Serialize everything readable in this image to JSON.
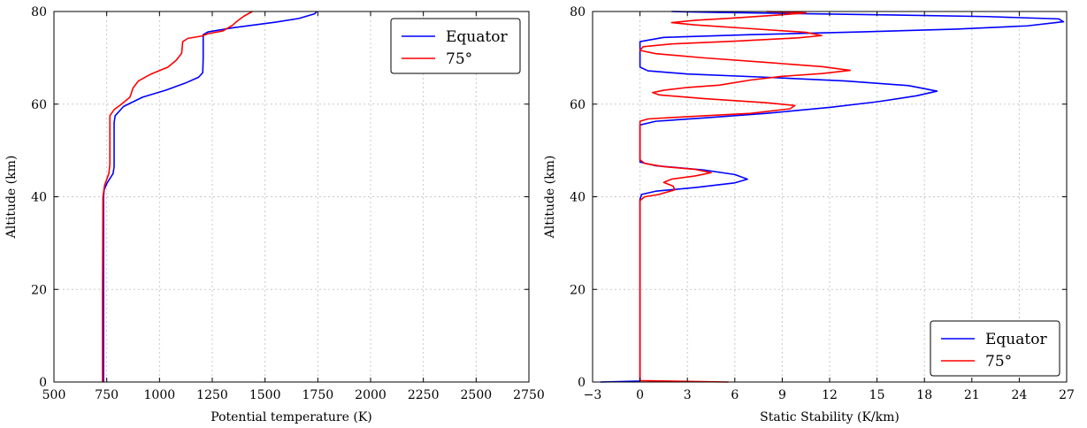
{
  "chart_data": [
    {
      "type": "line",
      "xlabel": "Potential temperature (K)",
      "ylabel": "Altitude (km)",
      "xlim": [
        500,
        2750
      ],
      "ylim": [
        0,
        80
      ],
      "xticks": [
        500,
        750,
        1000,
        1250,
        1500,
        1750,
        2000,
        2250,
        2500,
        2750
      ],
      "yticks": [
        0,
        20,
        40,
        60,
        80
      ],
      "grid": true,
      "legend_position": "top-right",
      "series": [
        {
          "name": "Equator",
          "color": "#0000ff",
          "points": [
            [
              735,
              0
            ],
            [
              735,
              20
            ],
            [
              735,
              40
            ],
            [
              738,
              41.5
            ],
            [
              752,
              43
            ],
            [
              780,
              45
            ],
            [
              785,
              46.5
            ],
            [
              785,
              56
            ],
            [
              790,
              57.5
            ],
            [
              830,
              59.5
            ],
            [
              920,
              61.5
            ],
            [
              1030,
              63
            ],
            [
              1120,
              64.5
            ],
            [
              1185,
              65.8
            ],
            [
              1205,
              66.8
            ],
            [
              1207,
              70
            ],
            [
              1207,
              75
            ],
            [
              1230,
              75.6
            ],
            [
              1350,
              76.5
            ],
            [
              1550,
              77.7
            ],
            [
              1660,
              78.5
            ],
            [
              1735,
              79.5
            ],
            [
              1745,
              80
            ]
          ]
        },
        {
          "name": "75°",
          "color": "#ff0000",
          "points": [
            [
              730,
              0
            ],
            [
              730,
              20
            ],
            [
              732,
              40
            ],
            [
              740,
              42.5
            ],
            [
              760,
              45
            ],
            [
              765,
              47
            ],
            [
              765,
              57.5
            ],
            [
              785,
              58.8
            ],
            [
              820,
              60
            ],
            [
              860,
              61.5
            ],
            [
              875,
              63.5
            ],
            [
              900,
              65
            ],
            [
              960,
              66.5
            ],
            [
              1040,
              68
            ],
            [
              1080,
              69.5
            ],
            [
              1105,
              71
            ],
            [
              1110,
              73.5
            ],
            [
              1135,
              74.2
            ],
            [
              1200,
              74.7
            ],
            [
              1230,
              75.2
            ],
            [
              1300,
              75.8
            ],
            [
              1345,
              77
            ],
            [
              1370,
              78
            ],
            [
              1400,
              79
            ],
            [
              1440,
              80
            ]
          ]
        }
      ]
    },
    {
      "type": "line",
      "xlabel": "Static Stability (K/km)",
      "ylabel": "Altitude (km)",
      "xlim": [
        -3,
        27
      ],
      "ylim": [
        0,
        80
      ],
      "xticks": [
        -3,
        0,
        3,
        6,
        9,
        12,
        15,
        18,
        21,
        24,
        27
      ],
      "xtick_labels": [
        "−3",
        "0",
        "3",
        "6",
        "9",
        "12",
        "15",
        "18",
        "21",
        "24",
        "27"
      ],
      "yticks": [
        0,
        20,
        40,
        60,
        80
      ],
      "grid": true,
      "legend_position": "bottom-right",
      "series": [
        {
          "name": "Equator",
          "color": "#0000ff",
          "points": [
            [
              -2.5,
              0
            ],
            [
              0,
              0.2
            ],
            [
              0,
              20
            ],
            [
              0,
              39.5
            ],
            [
              0.1,
              40.5
            ],
            [
              1,
              41.2
            ],
            [
              3.5,
              42
            ],
            [
              6,
              43
            ],
            [
              6.8,
              43.8
            ],
            [
              6,
              44.8
            ],
            [
              4,
              45.8
            ],
            [
              1,
              46.7
            ],
            [
              0,
              47.5
            ],
            [
              0,
              55.5
            ],
            [
              1,
              56.3
            ],
            [
              4,
              57
            ],
            [
              8,
              58
            ],
            [
              12,
              59.3
            ],
            [
              15,
              60.5
            ],
            [
              17.5,
              61.8
            ],
            [
              18.8,
              62.8
            ],
            [
              17,
              64
            ],
            [
              13,
              65
            ],
            [
              8,
              65.8
            ],
            [
              3,
              66.5
            ],
            [
              0.5,
              67.2
            ],
            [
              0,
              68
            ],
            [
              0,
              73.5
            ],
            [
              1.5,
              74.4
            ],
            [
              7,
              75
            ],
            [
              14,
              75.6
            ],
            [
              20,
              76.2
            ],
            [
              24.5,
              76.9
            ],
            [
              26.8,
              77.8
            ],
            [
              26.5,
              78.4
            ],
            [
              22,
              78.9
            ],
            [
              15,
              79.3
            ],
            [
              9,
              79.6
            ],
            [
              5,
              79.8
            ],
            [
              2,
              80
            ]
          ]
        },
        {
          "name": "75°",
          "color": "#ff0000",
          "points": [
            [
              5.6,
              0
            ],
            [
              0,
              0.3
            ],
            [
              0,
              20
            ],
            [
              0,
              39.2
            ],
            [
              0.3,
              40
            ],
            [
              1.2,
              40.5
            ],
            [
              2.2,
              41.5
            ],
            [
              2.1,
              42.3
            ],
            [
              1.5,
              43.1
            ],
            [
              2,
              43.8
            ],
            [
              3.5,
              44.5
            ],
            [
              4.5,
              45.2
            ],
            [
              3.5,
              45.9
            ],
            [
              1.5,
              46.5
            ],
            [
              0.3,
              47.2
            ],
            [
              0,
              48
            ],
            [
              0,
              56.3
            ],
            [
              0.5,
              56.8
            ],
            [
              3,
              57.3
            ],
            [
              7,
              58
            ],
            [
              9.5,
              59
            ],
            [
              9.8,
              59.7
            ],
            [
              8,
              60.3
            ],
            [
              4,
              61.2
            ],
            [
              1.2,
              62
            ],
            [
              0.8,
              62.5
            ],
            [
              1.5,
              63
            ],
            [
              3,
              63.6
            ],
            [
              5,
              64.1
            ],
            [
              7,
              65.2
            ],
            [
              9,
              66
            ],
            [
              11.5,
              66.6
            ],
            [
              13.3,
              67.3
            ],
            [
              11.5,
              68.1
            ],
            [
              8,
              69
            ],
            [
              4,
              70
            ],
            [
              1,
              70.9
            ],
            [
              0,
              71.6
            ],
            [
              0.2,
              72.4
            ],
            [
              2,
              73
            ],
            [
              6,
              73.6
            ],
            [
              10,
              74.3
            ],
            [
              11.5,
              74.8
            ],
            [
              10.5,
              75.5
            ],
            [
              7,
              76.3
            ],
            [
              3.5,
              77.1
            ],
            [
              2,
              77.6
            ],
            [
              3.5,
              78.1
            ],
            [
              6,
              78.6
            ],
            [
              9,
              79.3
            ],
            [
              10.5,
              79.7
            ],
            [
              8,
              80
            ]
          ]
        }
      ]
    }
  ]
}
